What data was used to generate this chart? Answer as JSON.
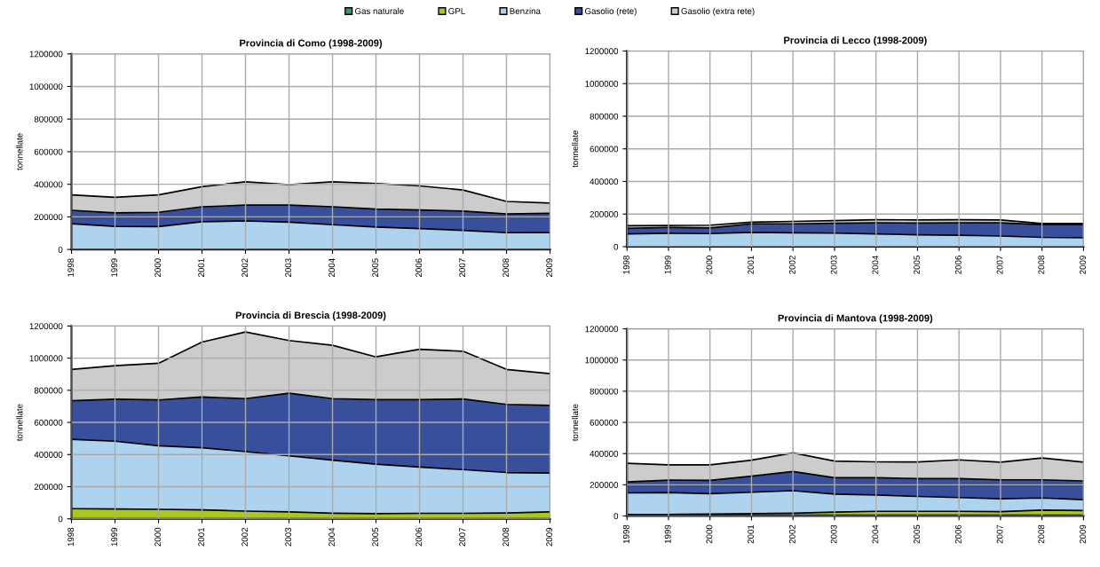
{
  "chart_data": [
    {
      "type": "area",
      "stacked": true,
      "title": "Provincia di Como (1998-2009)",
      "ylabel": "tonnellate",
      "categories": [
        "1998",
        "1999",
        "2000",
        "2001",
        "2002",
        "2003",
        "2004",
        "2005",
        "2006",
        "2007",
        "2008",
        "2009"
      ],
      "ylim": [
        0,
        1200000
      ],
      "yticks": [
        0,
        200000,
        400000,
        600000,
        800000,
        1000000,
        1200000
      ],
      "grid": true,
      "legend": "top",
      "series": [
        {
          "name": "Gas naturale",
          "color": "#2e9e6e",
          "values": [
            null,
            null,
            null,
            null,
            null,
            null,
            null,
            null,
            null,
            null,
            null,
            null
          ]
        },
        {
          "name": "GPL",
          "color": "#a8c81e",
          "values": [
            null,
            null,
            null,
            null,
            null,
            null,
            null,
            null,
            null,
            null,
            null,
            null
          ]
        },
        {
          "name": "Benzina",
          "color": "#aed3ee",
          "values": [
            158000,
            142000,
            140000,
            170000,
            175000,
            168000,
            152000,
            138000,
            128000,
            117000,
            103000,
            104000
          ]
        },
        {
          "name": "Gasolio (rete)",
          "color": "#384f9c",
          "values": [
            82000,
            83000,
            88000,
            92000,
            97000,
            104000,
            110000,
            110000,
            114000,
            119000,
            115000,
            118000
          ]
        },
        {
          "name": "Gasolio (extra rete)",
          "color": "#cccccc",
          "values": [
            95000,
            95000,
            107000,
            123000,
            143000,
            126000,
            153000,
            157000,
            148000,
            129000,
            77000,
            63000
          ]
        }
      ]
    },
    {
      "type": "area",
      "stacked": true,
      "title": "Provincia di Lecco (1998-2009)",
      "ylabel": "tonnellate",
      "categories": [
        "1998",
        "1999",
        "2000",
        "2001",
        "2002",
        "2003",
        "2004",
        "2005",
        "2006",
        "2007",
        "2008",
        "2009"
      ],
      "ylim": [
        0,
        1200000
      ],
      "yticks": [
        0,
        200000,
        400000,
        600000,
        800000,
        1000000,
        1200000
      ],
      "grid": true,
      "series": [
        {
          "color": "#aed3ee",
          "values": [
            78000,
            82000,
            80000,
            88000,
            85000,
            83000,
            78000,
            73000,
            70000,
            65000,
            57000,
            55000
          ]
        },
        {
          "color": "#384f9c",
          "values": [
            34000,
            36000,
            35000,
            52000,
            55000,
            60000,
            68000,
            72000,
            76000,
            81000,
            78000,
            80000
          ]
        },
        {
          "color": "#cccccc",
          "values": [
            16000,
            12000,
            17000,
            10000,
            15000,
            17000,
            19000,
            19000,
            19000,
            18000,
            7000,
            7000
          ]
        }
      ]
    },
    {
      "type": "area",
      "stacked": true,
      "title": "Provincia di Brescia (1998-2009)",
      "ylabel": "tonnellate",
      "categories": [
        "1998",
        "1999",
        "2000",
        "2001",
        "2002",
        "2003",
        "2004",
        "2005",
        "2006",
        "2007",
        "2008",
        "2009"
      ],
      "ylim": [
        0,
        1200000
      ],
      "yticks": [
        0,
        200000,
        400000,
        600000,
        800000,
        1000000,
        1200000
      ],
      "grid": true,
      "series": [
        {
          "color": "#a8c81e",
          "values": [
            63000,
            61000,
            59000,
            56000,
            48000,
            43000,
            35000,
            32000,
            34000,
            34000,
            36000,
            43000
          ]
        },
        {
          "color": "#aed3ee",
          "values": [
            432000,
            422000,
            396000,
            386000,
            370000,
            349000,
            330000,
            308000,
            288000,
            272000,
            252000,
            242000
          ]
        },
        {
          "color": "#384f9c",
          "values": [
            240000,
            262000,
            285000,
            316000,
            330000,
            390000,
            383000,
            402000,
            420000,
            440000,
            424000,
            421000
          ]
        },
        {
          "color": "#cccccc",
          "values": [
            195000,
            208000,
            228000,
            342000,
            415000,
            328000,
            332000,
            266000,
            313000,
            297000,
            218000,
            198000
          ]
        }
      ]
    },
    {
      "type": "area",
      "stacked": true,
      "title": "Provincia di Mantova (1998-2009)",
      "ylabel": "tonnellate",
      "categories": [
        "1998",
        "1999",
        "2000",
        "2001",
        "2002",
        "2003",
        "2004",
        "2005",
        "2006",
        "2007",
        "2008",
        "2009"
      ],
      "ylim": [
        0,
        1200000
      ],
      "yticks": [
        0,
        200000,
        400000,
        600000,
        800000,
        1000000,
        1200000
      ],
      "grid": true,
      "series": [
        {
          "color": "#2e9e6e",
          "values": [
            5000,
            5000,
            5000,
            5000,
            5000,
            5000,
            5000,
            5000,
            5000,
            5000,
            5000,
            5000
          ]
        },
        {
          "color": "#a8c81e",
          "values": [
            5000,
            5000,
            7000,
            10000,
            13000,
            20000,
            25000,
            25000,
            25000,
            23000,
            33000,
            30000
          ]
        },
        {
          "color": "#aed3ee",
          "values": [
            138000,
            140000,
            131000,
            137000,
            144000,
            115000,
            104000,
            95000,
            88000,
            82000,
            77000,
            70000
          ]
        },
        {
          "color": "#384f9c",
          "values": [
            70000,
            80000,
            85000,
            103000,
            123000,
            105000,
            111000,
            115000,
            122000,
            122000,
            117000,
            120000
          ]
        },
        {
          "color": "#cccccc",
          "values": [
            120000,
            98000,
            100000,
            103000,
            120000,
            107000,
            102000,
            106000,
            120000,
            113000,
            140000,
            120000
          ]
        }
      ]
    }
  ]
}
